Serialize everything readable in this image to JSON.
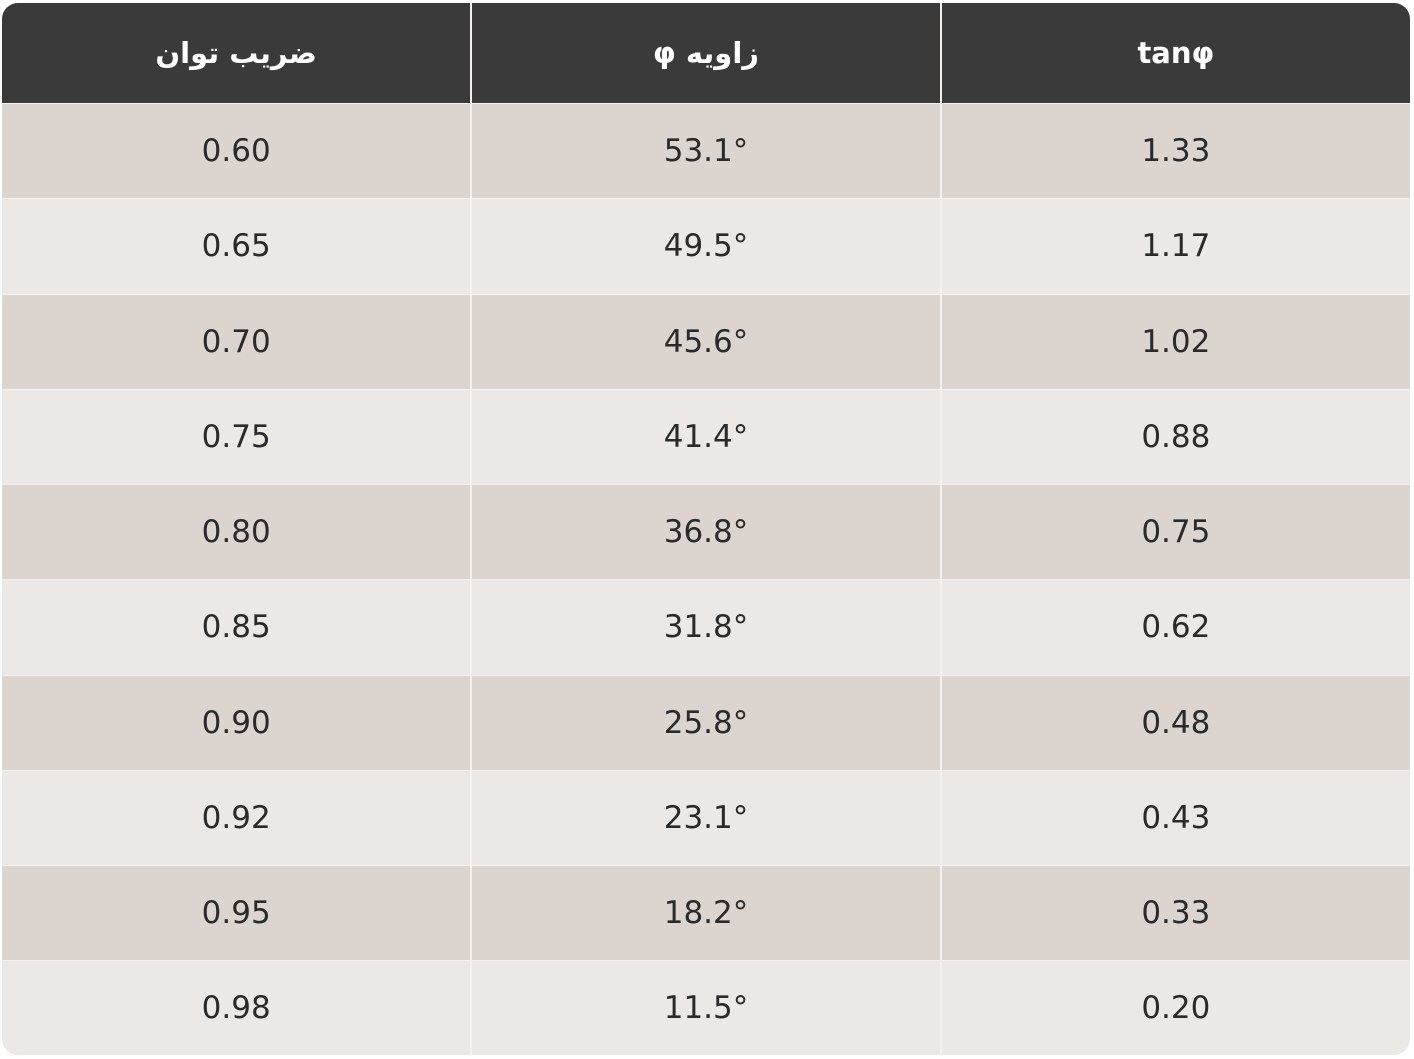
{
  "table": {
    "header": [
      "ضریب توان",
      "زاویه φ",
      "tanφ"
    ],
    "rows": [
      [
        "0.60",
        "53.1°",
        "1.33"
      ],
      [
        "0.65",
        "49.5°",
        "1.17"
      ],
      [
        "0.70",
        "45.6°",
        "1.02"
      ],
      [
        "0.75",
        "41.4°",
        "0.88"
      ],
      [
        "0.80",
        "36.8°",
        "0.75"
      ],
      [
        "0.85",
        "31.8°",
        "0.62"
      ],
      [
        "0.90",
        "25.8°",
        "0.48"
      ],
      [
        "0.92",
        "23.1°",
        "0.43"
      ],
      [
        "0.95",
        "18.2°",
        "0.33"
      ],
      [
        "0.98",
        "11.5°",
        "0.20"
      ]
    ]
  }
}
